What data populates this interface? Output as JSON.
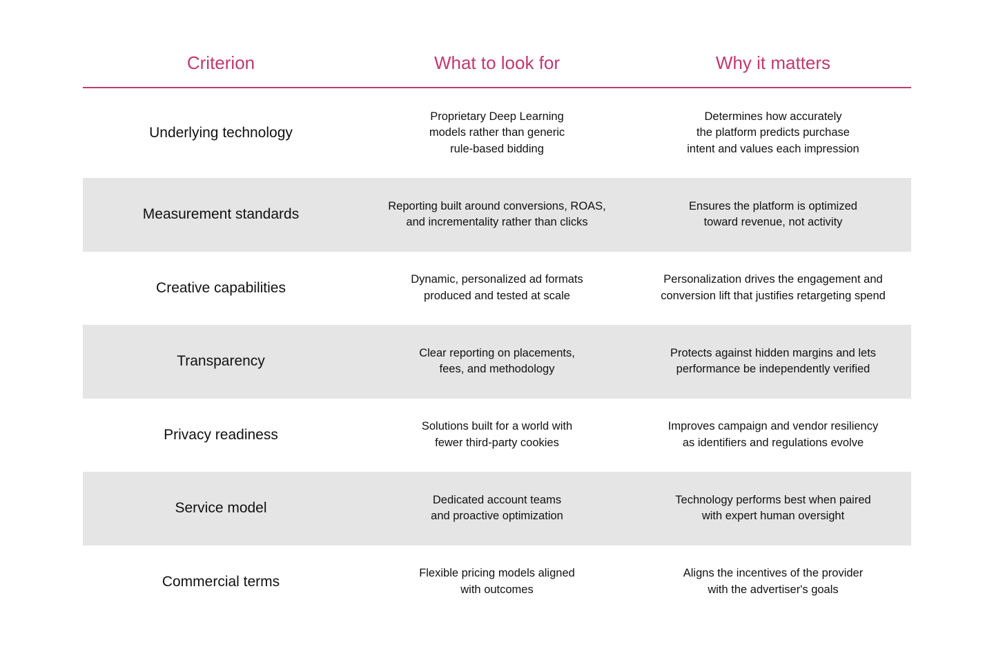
{
  "table": {
    "headers": [
      "Criterion",
      "What to look for",
      "Why it matters"
    ],
    "rows": [
      [
        "Underlying technology",
        [
          "Proprietary Deep Learning",
          "models rather than generic",
          "rule-based bidding"
        ],
        [
          "Determines how accurately",
          "the platform predicts purchase",
          "intent and values each impression"
        ]
      ],
      [
        "Measurement standards",
        [
          "Reporting built around conversions, ROAS,",
          "and incrementality rather than clicks"
        ],
        [
          "Ensures the platform is optimized",
          "toward revenue, not activity"
        ]
      ],
      [
        "Creative capabilities",
        [
          "Dynamic, personalized ad formats",
          "produced and tested at scale"
        ],
        [
          "Personalization drives the engagement and",
          "conversion lift that justifies retargeting spend"
        ]
      ],
      [
        "Transparency",
        [
          "Clear reporting on placements,",
          "fees, and methodology"
        ],
        [
          "Protects against hidden margins and lets",
          "performance be independently verified"
        ]
      ],
      [
        "Privacy readiness",
        [
          "Solutions built for a world with",
          "fewer third-party cookies"
        ],
        [
          "Improves campaign and vendor resiliency",
          "as identifiers and regulations evolve"
        ]
      ],
      [
        "Service model",
        [
          "Dedicated account teams",
          "and proactive optimization"
        ],
        [
          "Technology performs best when paired",
          "with expert human oversight"
        ]
      ],
      [
        "Commercial terms",
        [
          "Flexible pricing models aligned",
          "with outcomes"
        ],
        [
          "Aligns the incentives of the provider",
          "with the advertiser's goals"
        ]
      ]
    ]
  }
}
